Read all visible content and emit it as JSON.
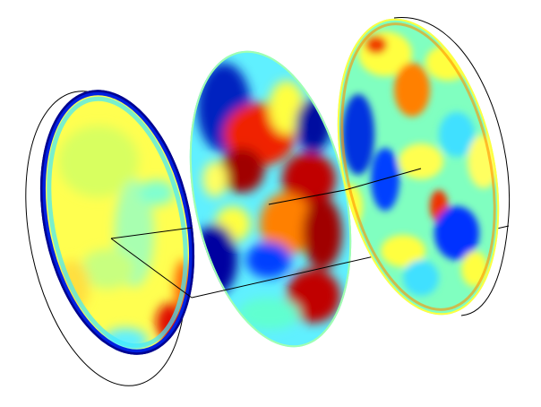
{
  "scene": {
    "kind": "3d-colormap-slices",
    "colormap": "jet",
    "background": "#ffffff",
    "outline_color": "#000000",
    "slices": [
      {
        "name": "slice-left",
        "field": "low-amplitude"
      },
      {
        "name": "slice-middle",
        "field": "high-amplitude"
      },
      {
        "name": "slice-right",
        "field": "mixed"
      }
    ]
  },
  "palette": {
    "dark_blue": "#00008f",
    "blue": "#0030ff",
    "cyan": "#40e8ff",
    "aqua": "#8fffd0",
    "yellow": "#ffff30",
    "orange": "#ff9000",
    "red": "#f01000",
    "dark_red": "#8f0000"
  }
}
